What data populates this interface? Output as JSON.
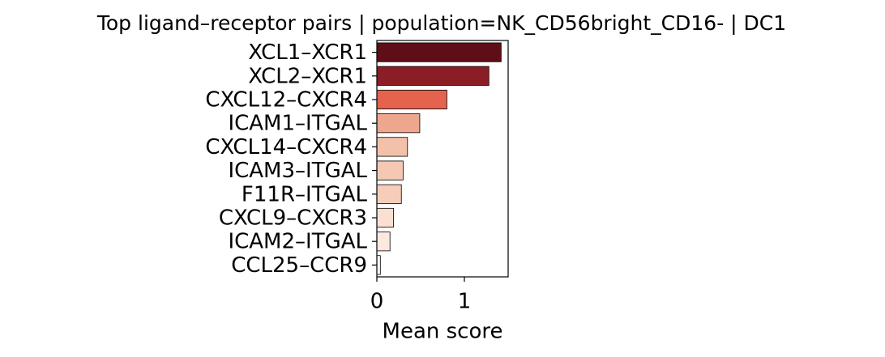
{
  "chart_data": {
    "type": "barh",
    "title": "Top ligand–receptor pairs | population=NK_CD56bright_CD16- | DC1",
    "categories": [
      "XCL1–XCR1",
      "XCL2–XCR1",
      "CXCL12–CXCR4",
      "ICAM1–ITGAL",
      "CXCL14–CXCR4",
      "ICAM3–ITGAL",
      "F11R–ITGAL",
      "CXCL9–CXCR3",
      "ICAM2–ITGAL",
      "CCL25–CCR9"
    ],
    "values": [
      1.42,
      1.28,
      0.8,
      0.49,
      0.35,
      0.3,
      0.28,
      0.19,
      0.15,
      0.04
    ],
    "colors": [
      "#5f0e18",
      "#8b1e24",
      "#e3634f",
      "#eea78c",
      "#f3c1a9",
      "#f5c8b4",
      "#f6cdb9",
      "#fbdfd2",
      "#fde8df",
      "#fff5f0"
    ],
    "xlabel": "Mean score",
    "xlim": [
      0,
      1.5
    ],
    "xticks": [
      0,
      1
    ]
  }
}
